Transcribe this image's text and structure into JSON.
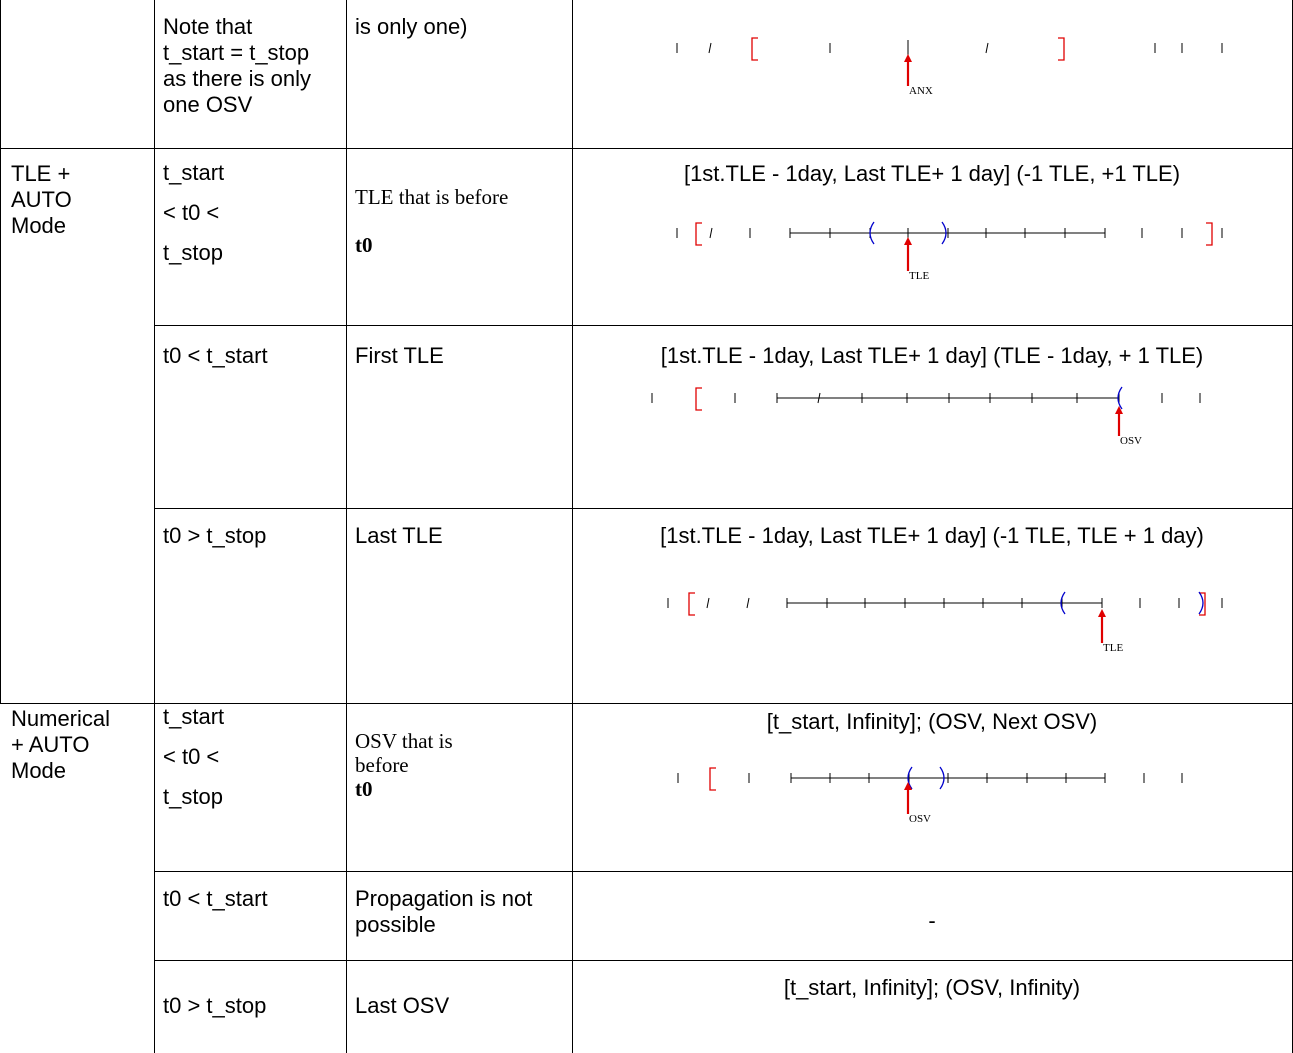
{
  "rows": {
    "single_osv": {
      "condition": "Note that\nt_start = t_stop\nas there is only\none OSV",
      "reference": "is only one)"
    },
    "tle_within": {
      "mode": "TLE +\nAUTO\nMode",
      "condition": "t_start\n< t0 <\nt_stop",
      "reference_plain": "TLE that is before",
      "reference_bold": "t0",
      "caption": "[1st.TLE - 1day, Last TLE+ 1 day] (-1 TLE, +1 TLE)"
    },
    "tle_before": {
      "condition": "t0 < t_start",
      "reference": "First TLE",
      "caption": "[1st.TLE - 1day, Last TLE+ 1 day] (TLE - 1day, + 1 TLE)"
    },
    "tle_after": {
      "condition": "t0 > t_stop",
      "reference": "Last TLE",
      "caption": "[1st.TLE - 1day, Last TLE+ 1 day] (-1 TLE, TLE + 1 day)"
    },
    "num_within": {
      "mode": "Numerical\n+ AUTO\nMode",
      "condition": "t_start\n< t0 <\nt_stop",
      "reference_plain": "OSV that is\nbefore",
      "reference_bold": "t0",
      "caption": "[t_start, Infinity]; (OSV, Next OSV)"
    },
    "num_before": {
      "condition": "t0 < t_start",
      "reference": "Propagation is not\npossible",
      "caption": "-"
    },
    "num_after": {
      "condition": "t0 > t_stop",
      "reference": "Last OSV",
      "caption": "[t_start, Infinity]; (OSV, Infinity)"
    }
  },
  "diagram_labels": {
    "anx": "ANX",
    "tle": "TLE",
    "osv": "OSV"
  },
  "colors": {
    "validity_bracket": "#e00000",
    "interval_bracket": "#0000cc",
    "marker_arrow": "#e00000"
  }
}
